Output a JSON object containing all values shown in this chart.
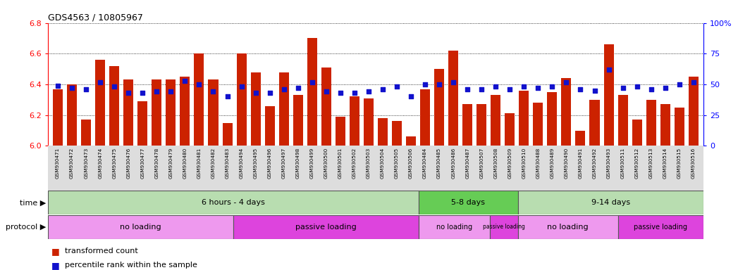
{
  "title": "GDS4563 / 10805967",
  "ylim": [
    6.0,
    6.8
  ],
  "yticks_left": [
    6.0,
    6.2,
    6.4,
    6.6,
    6.8
  ],
  "yticks_right": [
    0,
    25,
    50,
    75,
    100
  ],
  "bar_color": "#cc2200",
  "dot_color": "#1111cc",
  "samples": [
    "GSM930471",
    "GSM930472",
    "GSM930473",
    "GSM930474",
    "GSM930475",
    "GSM930476",
    "GSM930477",
    "GSM930478",
    "GSM930479",
    "GSM930480",
    "GSM930481",
    "GSM930482",
    "GSM930483",
    "GSM930494",
    "GSM930495",
    "GSM930496",
    "GSM930497",
    "GSM930498",
    "GSM930499",
    "GSM930500",
    "GSM930501",
    "GSM930502",
    "GSM930503",
    "GSM930504",
    "GSM930505",
    "GSM930506",
    "GSM930484",
    "GSM930485",
    "GSM930486",
    "GSM930487",
    "GSM930507",
    "GSM930508",
    "GSM930509",
    "GSM930510",
    "GSM930488",
    "GSM930489",
    "GSM930490",
    "GSM930491",
    "GSM930492",
    "GSM930493",
    "GSM930511",
    "GSM930512",
    "GSM930513",
    "GSM930514",
    "GSM930515",
    "GSM930516"
  ],
  "bar_values": [
    6.37,
    6.4,
    6.17,
    6.56,
    6.52,
    6.43,
    6.29,
    6.43,
    6.43,
    6.45,
    6.6,
    6.43,
    6.15,
    6.6,
    6.48,
    6.26,
    6.48,
    6.33,
    6.7,
    6.51,
    6.19,
    6.32,
    6.31,
    6.18,
    6.16,
    6.06,
    6.37,
    6.5,
    6.62,
    6.27,
    6.27,
    6.33,
    6.21,
    6.36,
    6.28,
    6.35,
    6.44,
    6.1,
    6.3,
    6.66,
    6.33,
    6.17,
    6.3,
    6.27,
    6.25,
    6.45
  ],
  "dot_percentiles": [
    49,
    47,
    46,
    52,
    48,
    43,
    43,
    44,
    44,
    53,
    50,
    44,
    40,
    48,
    43,
    43,
    46,
    47,
    52,
    44,
    43,
    43,
    44,
    46,
    48,
    40,
    50,
    50,
    52,
    46,
    46,
    48,
    46,
    48,
    47,
    48,
    52,
    46,
    45,
    62,
    47,
    48,
    46,
    47,
    50,
    52
  ],
  "time_groups": [
    {
      "label": "6 hours - 4 days",
      "start": 0,
      "end": 26,
      "color": "#b8ddb0"
    },
    {
      "label": "5-8 days",
      "start": 26,
      "end": 33,
      "color": "#66cc55"
    },
    {
      "label": "9-14 days",
      "start": 33,
      "end": 46,
      "color": "#b8ddb0"
    }
  ],
  "protocol_groups": [
    {
      "label": "no loading",
      "start": 0,
      "end": 13,
      "color": "#ee99ee"
    },
    {
      "label": "passive loading",
      "start": 13,
      "end": 26,
      "color": "#dd44dd"
    },
    {
      "label": "no loading",
      "start": 26,
      "end": 31,
      "color": "#ee99ee"
    },
    {
      "label": "passive loading",
      "start": 31,
      "end": 33,
      "color": "#dd44dd"
    },
    {
      "label": "no loading",
      "start": 33,
      "end": 40,
      "color": "#ee99ee"
    },
    {
      "label": "passive loading",
      "start": 40,
      "end": 46,
      "color": "#dd44dd"
    }
  ]
}
